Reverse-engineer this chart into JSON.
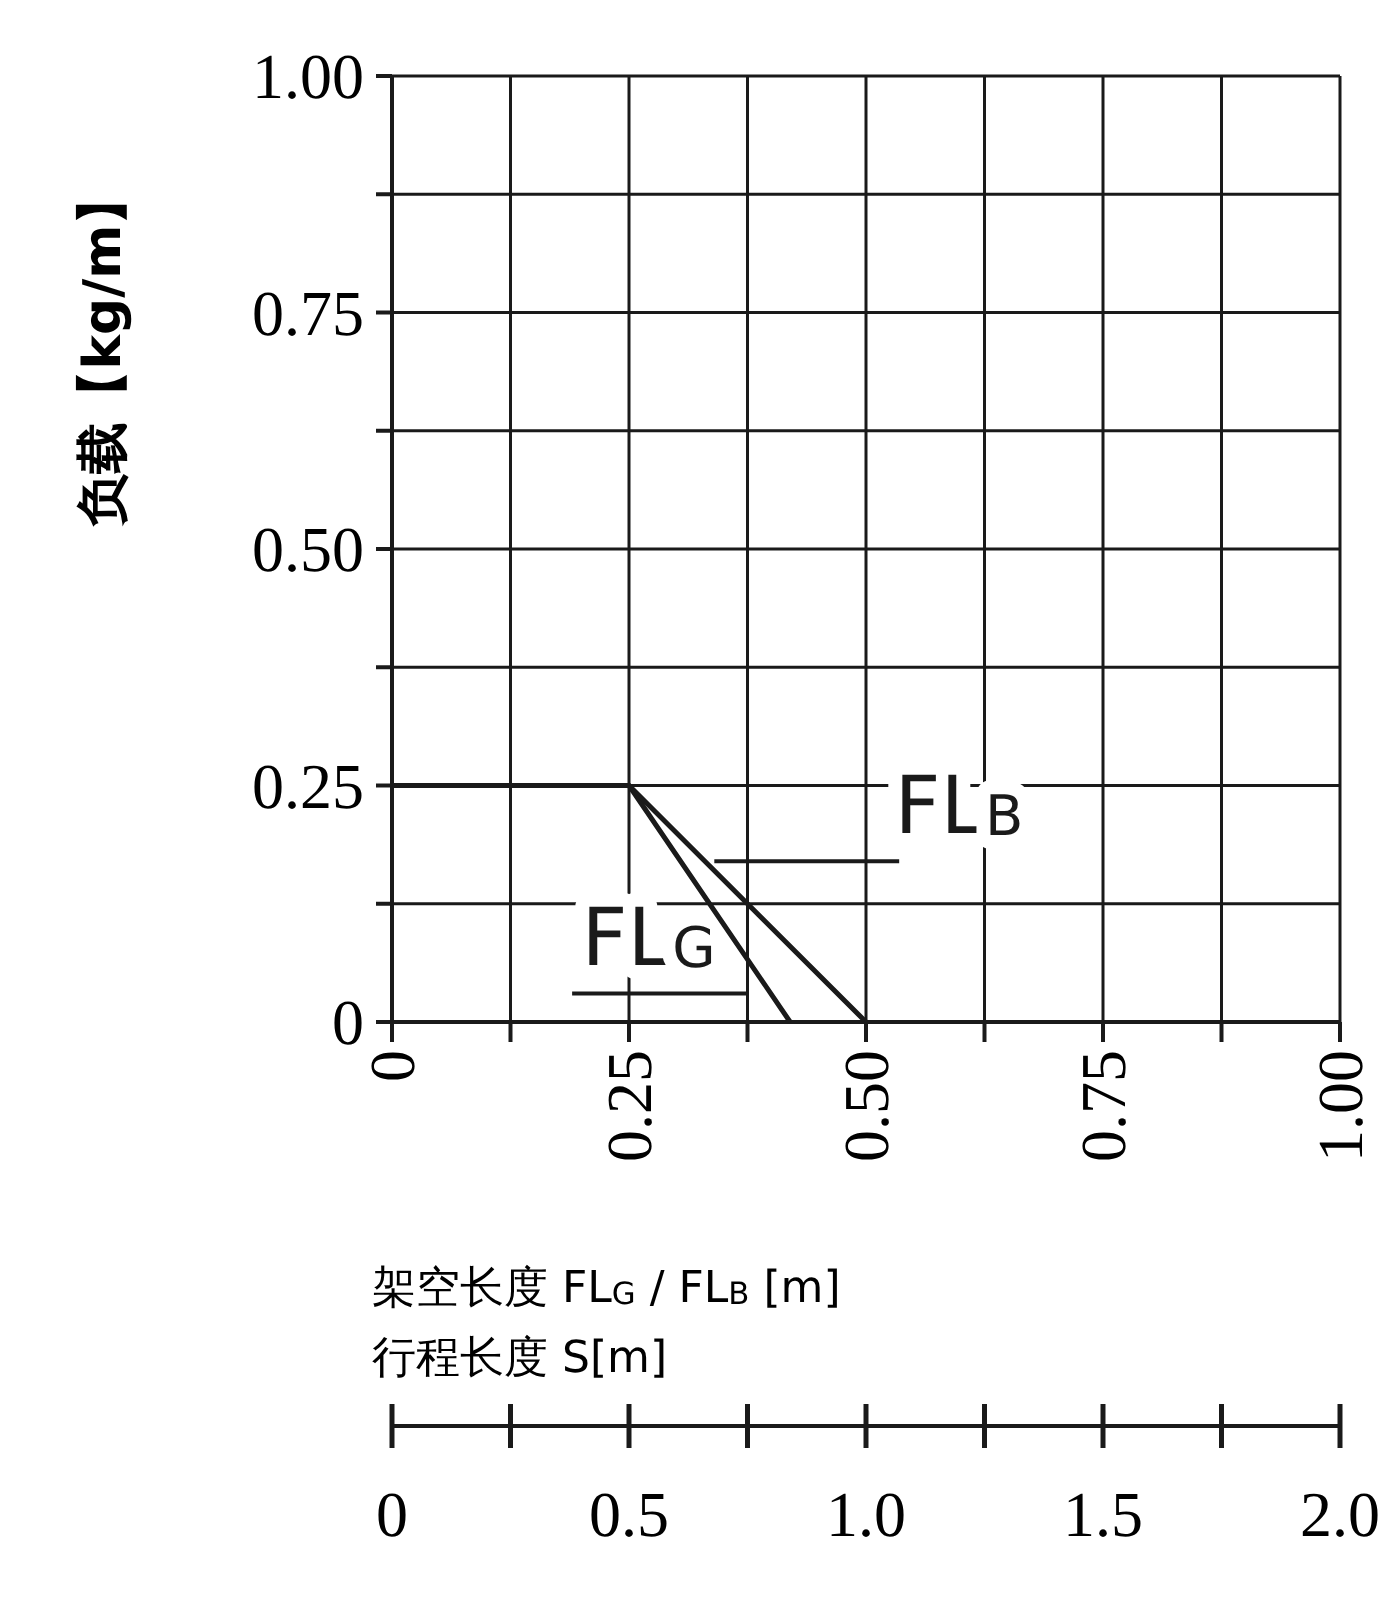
{
  "chart_data": {
    "type": "line",
    "ylabel": "负载【kg/m】",
    "xlabel": "架空长度 FL$_{G}$ / FL$_{B}$ [m]",
    "x2label": "行程长度 S[m]",
    "series": [
      {
        "name": "FL$_{G}$",
        "color": "#1a1a1a",
        "x": [
          0,
          0.25,
          0.42
        ],
        "values": [
          0.25,
          0.25,
          0
        ]
      },
      {
        "name": "FL$_{B}$",
        "color": "#1a1a1a",
        "x": [
          0,
          0.25,
          0.5
        ],
        "values": [
          0.25,
          0.25,
          0
        ]
      }
    ],
    "xlim": [
      0,
      1
    ],
    "ylim": [
      0,
      1
    ],
    "xticks": [
      {
        "value": 0,
        "label": "0"
      },
      {
        "value": 0.125,
        "label": null
      },
      {
        "value": 0.25,
        "label": "0.25"
      },
      {
        "value": 0.375,
        "label": null
      },
      {
        "value": 0.5,
        "label": "0.50"
      },
      {
        "value": 0.625,
        "label": null
      },
      {
        "value": 0.75,
        "label": "0.75"
      },
      {
        "value": 0.875,
        "label": null
      },
      {
        "value": 1,
        "label": "1.00"
      }
    ],
    "yticks": [
      {
        "value": 0,
        "label": "0"
      },
      {
        "value": 0.125,
        "label": null
      },
      {
        "value": 0.25,
        "label": "0.25"
      },
      {
        "value": 0.375,
        "label": null
      },
      {
        "value": 0.5,
        "label": "0.50"
      },
      {
        "value": 0.625,
        "label": null
      },
      {
        "value": 0.75,
        "label": "0.75"
      },
      {
        "value": 0.875,
        "label": null
      },
      {
        "value": 1,
        "label": "1.00"
      }
    ],
    "x2lim": [
      0,
      2
    ],
    "x2ticks": [
      {
        "value": 0,
        "label": "0"
      },
      {
        "value": 0.25,
        "label": null
      },
      {
        "value": 0.5,
        "label": "0.5"
      },
      {
        "value": 0.75,
        "label": null
      },
      {
        "value": 1,
        "label": "1.0"
      },
      {
        "value": 1.25,
        "label": null
      },
      {
        "value": 1.5,
        "label": "1.5"
      },
      {
        "value": 1.75,
        "label": null
      },
      {
        "value": 2,
        "label": "2.0"
      }
    ],
    "grid": true,
    "marker": "none",
    "line_style": "solid"
  }
}
